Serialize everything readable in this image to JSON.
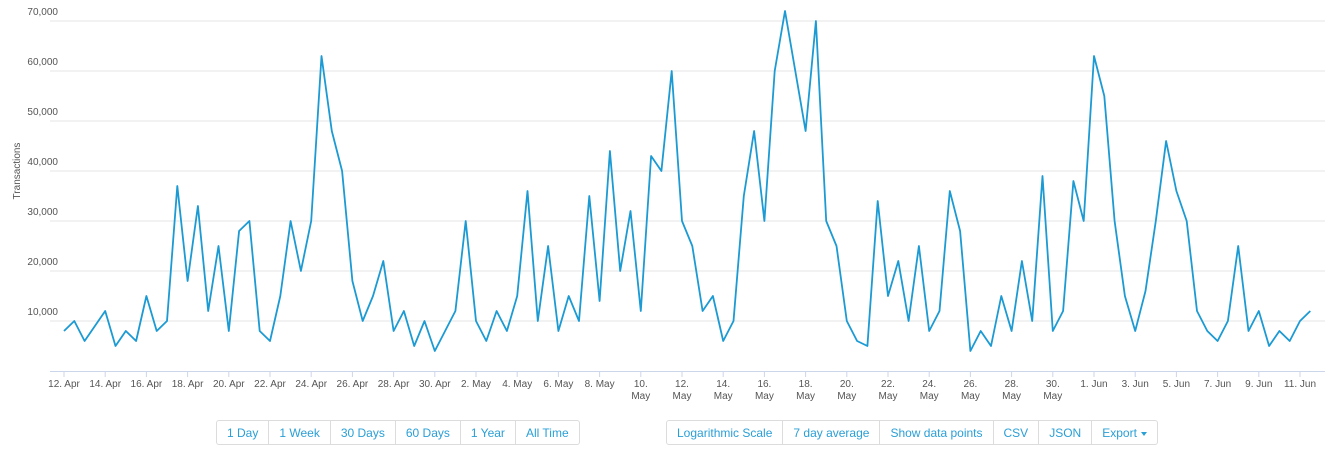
{
  "chart_data": {
    "type": "line",
    "y_label": "Transactions",
    "categories": [
      "12. Apr",
      null,
      null,
      null,
      "14. Apr",
      null,
      null,
      null,
      "16. Apr",
      null,
      null,
      null,
      "18. Apr",
      null,
      null,
      null,
      "20. Apr",
      null,
      null,
      null,
      "22. Apr",
      null,
      null,
      null,
      "24. Apr",
      null,
      null,
      null,
      "26. Apr",
      null,
      null,
      null,
      "28. Apr",
      null,
      null,
      null,
      "30. Apr",
      null,
      null,
      null,
      "2. May",
      null,
      null,
      null,
      "4. May",
      null,
      null,
      null,
      "6. May",
      null,
      null,
      null,
      "8. May",
      null,
      null,
      null,
      "10. May",
      null,
      null,
      null,
      "12. May",
      null,
      null,
      null,
      "14. May",
      null,
      null,
      null,
      "16. May",
      null,
      null,
      null,
      "18. May",
      null,
      null,
      null,
      "20. May",
      null,
      null,
      null,
      "22. May",
      null,
      null,
      null,
      "24. May",
      null,
      null,
      null,
      "26. May",
      null,
      null,
      null,
      "28. May",
      null,
      null,
      null,
      "30. May",
      null,
      null,
      null,
      "1. Jun",
      null,
      null,
      null,
      "3. Jun",
      null,
      null,
      null,
      "5. Jun",
      null,
      null,
      null,
      "7. Jun",
      null,
      null,
      null,
      "9. Jun",
      null,
      null,
      null,
      "11. Jun",
      null
    ],
    "series": [
      {
        "name": "Transactions",
        "color": "#1b9ad3",
        "values": [
          8000,
          10000,
          6000,
          9000,
          12000,
          5000,
          8000,
          6000,
          15000,
          8000,
          10000,
          37000,
          18000,
          33000,
          12000,
          25000,
          8000,
          28000,
          30000,
          8000,
          6000,
          15000,
          30000,
          20000,
          30000,
          63000,
          48000,
          40000,
          18000,
          10000,
          15000,
          22000,
          8000,
          12000,
          5000,
          10000,
          4000,
          8000,
          12000,
          30000,
          10000,
          6000,
          12000,
          8000,
          15000,
          36000,
          10000,
          25000,
          8000,
          15000,
          10000,
          35000,
          14000,
          44000,
          20000,
          32000,
          12000,
          43000,
          40000,
          60000,
          30000,
          25000,
          12000,
          15000,
          6000,
          10000,
          35000,
          48000,
          30000,
          60000,
          72000,
          60000,
          48000,
          70000,
          30000,
          25000,
          10000,
          6000,
          5000,
          34000,
          15000,
          22000,
          10000,
          25000,
          8000,
          12000,
          36000,
          28000,
          4000,
          8000,
          5000,
          15000,
          8000,
          22000,
          10000,
          39000,
          8000,
          12000,
          38000,
          30000,
          63000,
          55000,
          30000,
          15000,
          8000,
          16000,
          30000,
          46000,
          36000,
          30000,
          12000,
          8000,
          6000,
          10000,
          25000,
          8000,
          12000,
          5000,
          8000,
          6000,
          10000,
          12000
        ]
      }
    ],
    "ylim": [
      0,
      72000
    ],
    "yticks": [
      {
        "value": 10000,
        "label": "10,000"
      },
      {
        "value": 20000,
        "label": "20,000"
      },
      {
        "value": 30000,
        "label": "30,000"
      },
      {
        "value": 40000,
        "label": "40,000"
      },
      {
        "value": 50000,
        "label": "50,000"
      },
      {
        "value": 60000,
        "label": "60,000"
      },
      {
        "value": 70000,
        "label": "70,000"
      }
    ],
    "grid": true
  },
  "controls": {
    "range_buttons": [
      "1 Day",
      "1 Week",
      "30 Days",
      "60 Days",
      "1 Year",
      "All Time"
    ],
    "option_buttons": [
      "Logarithmic Scale",
      "7 day average",
      "Show data points",
      "CSV",
      "JSON",
      "Export"
    ]
  }
}
